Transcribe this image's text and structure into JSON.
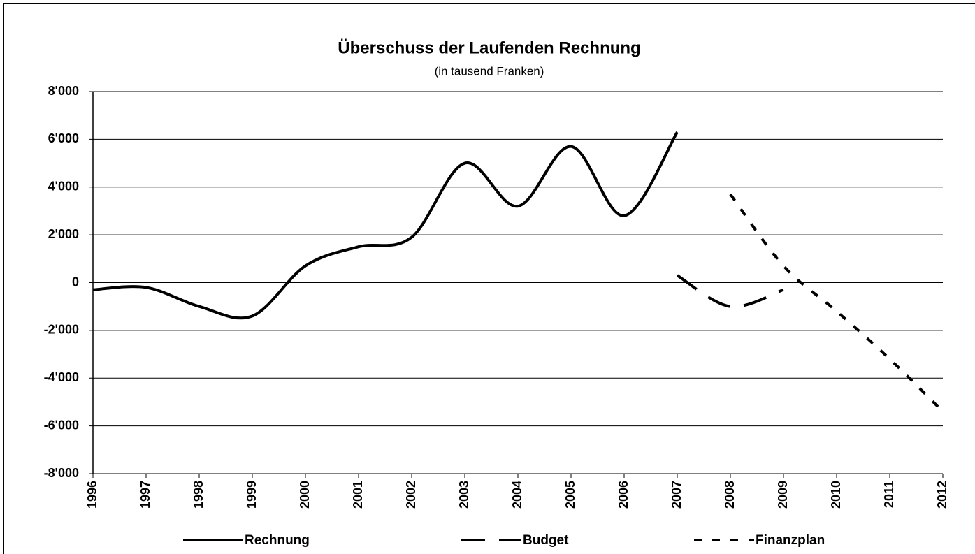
{
  "chart_data": {
    "type": "line",
    "title": "Überschuss der Laufenden Rechnung",
    "subtitle": "(in tausend Franken)",
    "categories": [
      "1996",
      "1997",
      "1998",
      "1999",
      "2000",
      "2001",
      "2002",
      "2003",
      "2004",
      "2005",
      "2006",
      "2007",
      "2008",
      "2009",
      "2010",
      "2011",
      "2012"
    ],
    "series": [
      {
        "name": "Rechnung",
        "color": "#000000",
        "dash": "solid",
        "values": [
          -300,
          -200,
          -1000,
          -1400,
          700,
          1500,
          1900,
          5000,
          3200,
          5700,
          2800,
          6300,
          null,
          null,
          null,
          null,
          null
        ]
      },
      {
        "name": "Budget",
        "color": "#000000",
        "dash": "long",
        "values": [
          null,
          null,
          null,
          null,
          null,
          null,
          null,
          null,
          null,
          null,
          null,
          300,
          -1000,
          -300,
          null,
          null,
          null
        ]
      },
      {
        "name": "Finanzplan",
        "color": "#000000",
        "dash": "short",
        "values": [
          null,
          null,
          null,
          null,
          null,
          null,
          null,
          null,
          null,
          null,
          null,
          null,
          3700,
          700,
          -1200,
          -3200,
          -5400
        ]
      }
    ],
    "ylim": [
      -8000,
      8000
    ],
    "yticks": [
      {
        "value": -8000,
        "label": "-8'000"
      },
      {
        "value": -6000,
        "label": "-6'000"
      },
      {
        "value": -4000,
        "label": "-4'000"
      },
      {
        "value": -2000,
        "label": "-2'000"
      },
      0,
      {
        "value": 2000,
        "label": "2'000"
      },
      {
        "value": 4000,
        "label": "4'000"
      },
      {
        "value": 6000,
        "label": "6'000"
      },
      {
        "value": 8000,
        "label": "8'000"
      }
    ],
    "grid": true,
    "smooth": true,
    "legend": "bottom"
  }
}
